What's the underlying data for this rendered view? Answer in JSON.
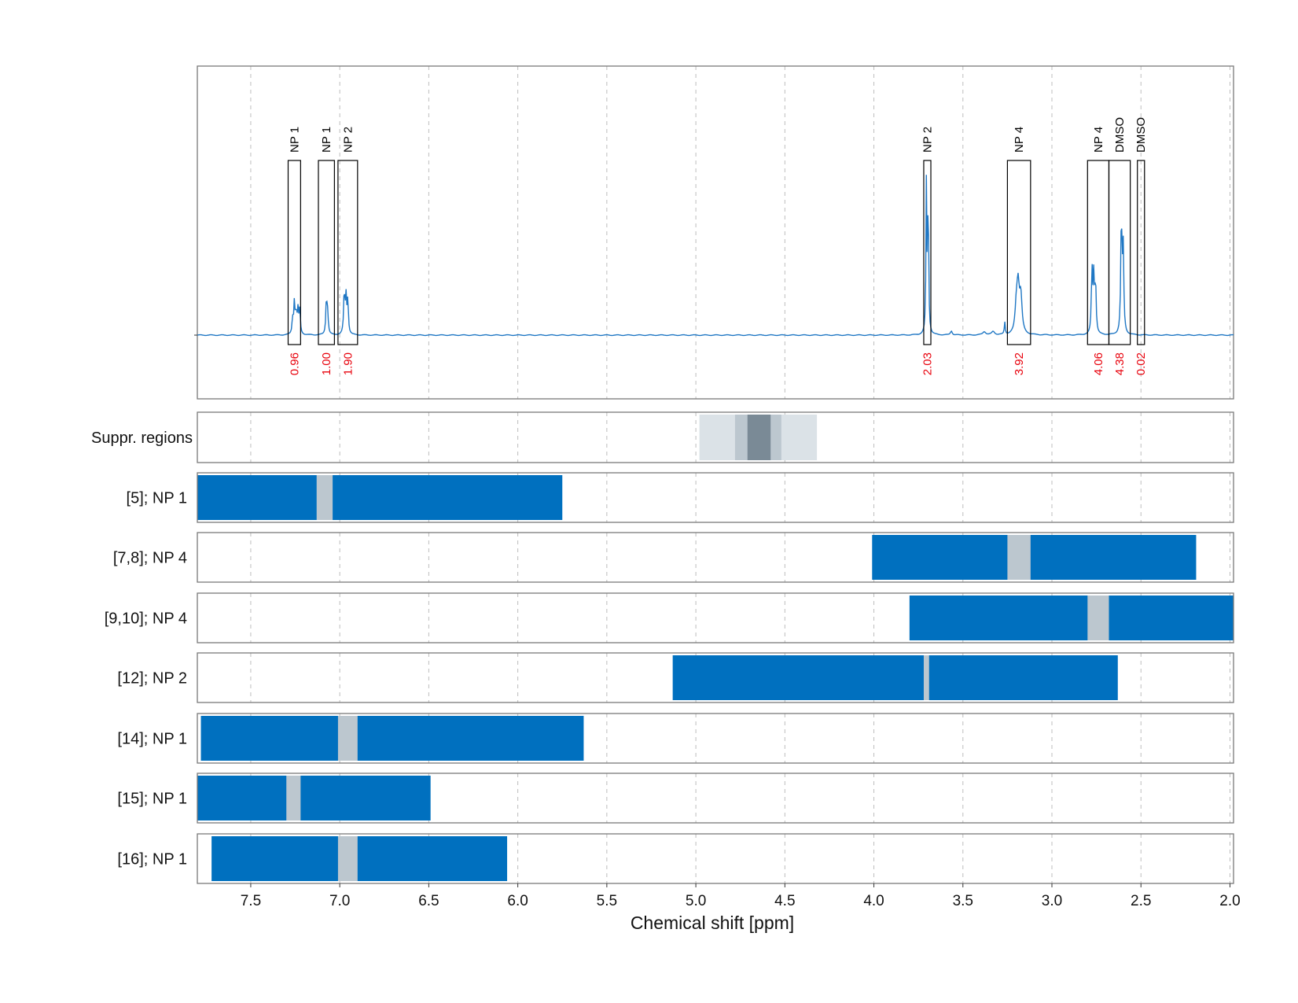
{
  "chart_data": {
    "type": "nmr-spectrum-with-region-tracks",
    "xlabel": "Chemical shift [ppm]",
    "xlim": [
      7.8,
      1.98
    ],
    "x_reversed": true,
    "x_ticks": [
      7.5,
      7.0,
      6.5,
      6.0,
      5.5,
      5.0,
      4.5,
      4.0,
      3.5,
      3.0,
      2.5,
      2.0
    ],
    "x_tick_labels": [
      "7.5",
      "7.0",
      "6.5",
      "6.0",
      "5.5",
      "5.0",
      "4.5",
      "4.0",
      "3.5",
      "3.0",
      "2.5",
      "2.0"
    ],
    "grid": true,
    "spectrum": {
      "color": "#1f77c4",
      "peaks": [
        {
          "ppm": 7.255,
          "height": 0.19,
          "width": 0.004
        },
        {
          "ppm": 7.245,
          "height": 0.12,
          "width": 0.004
        },
        {
          "ppm": 7.235,
          "height": 0.14,
          "width": 0.004
        },
        {
          "ppm": 7.225,
          "height": 0.15,
          "width": 0.004
        },
        {
          "ppm": 7.265,
          "height": 0.09,
          "width": 0.004
        },
        {
          "ppm": 7.075,
          "height": 0.21,
          "width": 0.004
        },
        {
          "ppm": 7.068,
          "height": 0.12,
          "width": 0.004
        },
        {
          "ppm": 6.975,
          "height": 0.25,
          "width": 0.004
        },
        {
          "ppm": 6.965,
          "height": 0.22,
          "width": 0.004
        },
        {
          "ppm": 6.955,
          "height": 0.2,
          "width": 0.004
        },
        {
          "ppm": 3.705,
          "height": 0.9,
          "width": 0.003
        },
        {
          "ppm": 3.695,
          "height": 0.86,
          "width": 0.003
        },
        {
          "ppm": 3.565,
          "height": 0.025,
          "width": 0.006
        },
        {
          "ppm": 3.38,
          "height": 0.02,
          "width": 0.01
        },
        {
          "ppm": 3.33,
          "height": 0.02,
          "width": 0.01
        },
        {
          "ppm": 3.265,
          "height": 0.075,
          "width": 0.003
        },
        {
          "ppm": 3.19,
          "height": 0.27,
          "width": 0.008
        },
        {
          "ppm": 3.175,
          "height": 0.22,
          "width": 0.008
        },
        {
          "ppm": 3.2,
          "height": 0.15,
          "width": 0.008
        },
        {
          "ppm": 2.775,
          "height": 0.38,
          "width": 0.004
        },
        {
          "ppm": 2.765,
          "height": 0.34,
          "width": 0.004
        },
        {
          "ppm": 2.755,
          "height": 0.3,
          "width": 0.004
        },
        {
          "ppm": 2.61,
          "height": 0.7,
          "width": 0.004
        },
        {
          "ppm": 2.6,
          "height": 0.52,
          "width": 0.004
        }
      ],
      "integrations": [
        {
          "label": "NP 1",
          "from": 7.29,
          "to": 7.22,
          "value": "0.96"
        },
        {
          "label": "NP 1",
          "from": 7.12,
          "to": 7.03,
          "value": "1.00"
        },
        {
          "label": "NP 2",
          "from": 7.01,
          "to": 6.9,
          "value": "1.90"
        },
        {
          "label": "NP 2",
          "from": 3.72,
          "to": 3.68,
          "value": "2.03"
        },
        {
          "label": "NP 4",
          "from": 3.25,
          "to": 3.12,
          "value": "3.92"
        },
        {
          "label": "NP 4",
          "from": 2.8,
          "to": 2.68,
          "value": "4.06"
        },
        {
          "label": "DMSO",
          "from": 2.68,
          "to": 2.56,
          "value": "4.38"
        },
        {
          "label": "DMSO",
          "from": 2.52,
          "to": 2.48,
          "value": "0.02"
        }
      ]
    },
    "suppressed_regions": {
      "label": "Suppr. regions",
      "bands": [
        {
          "from": 4.98,
          "to": 4.32,
          "color": "#dbe2e7"
        },
        {
          "from": 4.78,
          "to": 4.52,
          "color": "#bcc7cf"
        },
        {
          "from": 4.71,
          "to": 4.58,
          "color": "#7a8a96"
        }
      ]
    },
    "tracks": [
      {
        "label": "[5]; NP 1",
        "from": 7.8,
        "to": 5.75,
        "gap_from": 7.13,
        "gap_to": 7.04
      },
      {
        "label": "[7,8]; NP 4",
        "from": 4.01,
        "to": 2.19,
        "gap_from": 3.25,
        "gap_to": 3.12
      },
      {
        "label": "[9,10]; NP 4",
        "from": 3.8,
        "to": 1.98,
        "gap_from": 2.8,
        "gap_to": 2.68
      },
      {
        "label": "[12]; NP 2",
        "from": 5.13,
        "to": 2.63,
        "gap_from": 3.72,
        "gap_to": 3.69
      },
      {
        "label": "[14]; NP 1",
        "from": 7.78,
        "to": 5.63,
        "gap_from": 7.01,
        "gap_to": 6.9
      },
      {
        "label": "[15]; NP 1",
        "from": 7.8,
        "to": 6.49,
        "gap_from": 7.3,
        "gap_to": 7.22
      },
      {
        "label": "[16]; NP 1",
        "from": 7.72,
        "to": 6.06,
        "gap_from": 7.01,
        "gap_to": 6.9
      }
    ],
    "colors": {
      "bar": "#0070bf",
      "gap": "#bcc7cf",
      "integration_value": "#e8000b"
    }
  }
}
